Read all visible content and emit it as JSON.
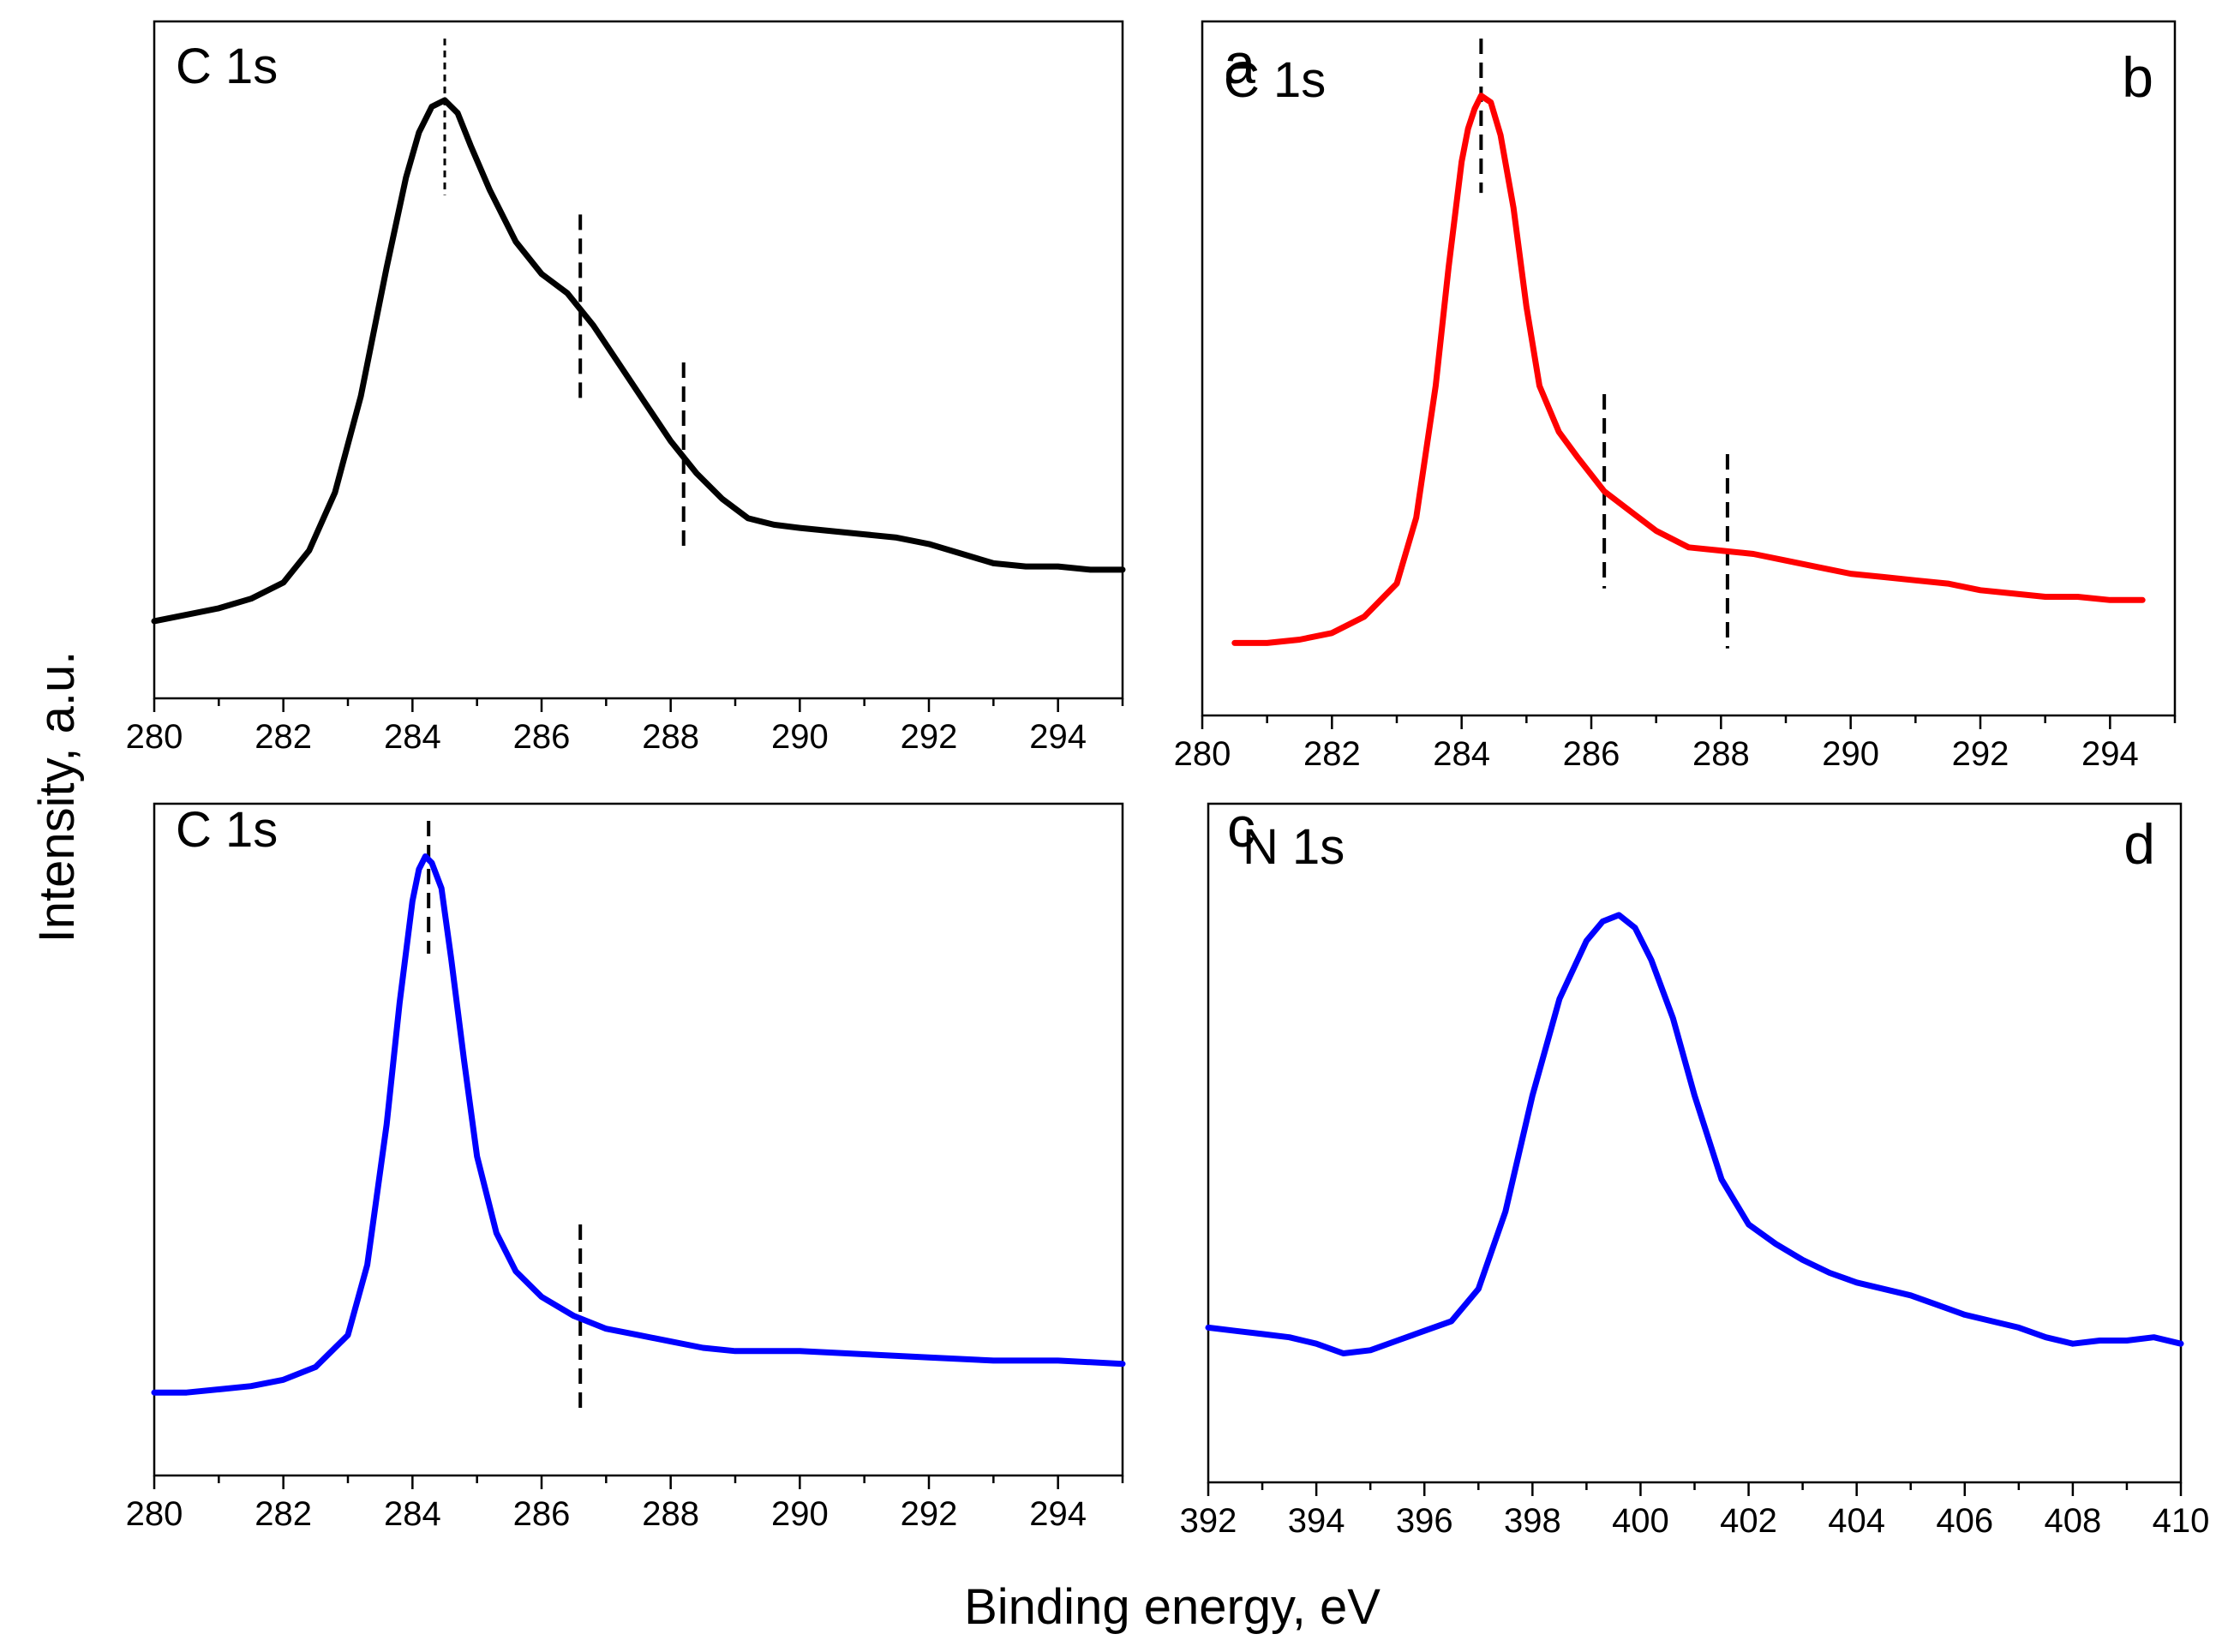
{
  "figure": {
    "xlabel": "Binding energy, eV",
    "ylabel": "Intensity, a.u."
  },
  "chart_data": [
    {
      "type": "line",
      "panel": "a",
      "label": "C 1s",
      "color": "#000000",
      "xlim": [
        280,
        295
      ],
      "ylim": [
        0,
        1
      ],
      "xticks": [
        280,
        282,
        284,
        286,
        288,
        290,
        292,
        294
      ],
      "xticks_minor_step": 1,
      "show_y_ticks": false,
      "marker_lines_x": [
        284.5,
        286.6,
        288.2
      ],
      "series": [
        {
          "x": [
            280,
            280.5,
            281,
            281.5,
            282,
            282.4,
            282.8,
            283.2,
            283.6,
            283.9,
            284.1,
            284.3,
            284.5,
            284.7,
            284.9,
            285.2,
            285.6,
            286.0,
            286.4,
            286.8,
            287.2,
            287.6,
            288.0,
            288.4,
            288.8,
            289.2,
            289.6,
            290.0,
            290.5,
            291.0,
            291.5,
            292.0,
            292.5,
            293.0,
            293.5,
            294.0,
            294.5,
            295.0
          ],
          "y": [
            0.12,
            0.13,
            0.14,
            0.155,
            0.18,
            0.23,
            0.32,
            0.47,
            0.67,
            0.81,
            0.88,
            0.92,
            0.93,
            0.91,
            0.86,
            0.79,
            0.71,
            0.66,
            0.63,
            0.58,
            0.52,
            0.46,
            0.4,
            0.35,
            0.31,
            0.28,
            0.27,
            0.265,
            0.26,
            0.255,
            0.25,
            0.24,
            0.225,
            0.21,
            0.205,
            0.205,
            0.2,
            0.2
          ]
        }
      ]
    },
    {
      "type": "line",
      "panel": "b",
      "label": "C 1s",
      "color": "#ff0000",
      "xlim": [
        280,
        295
      ],
      "ylim": [
        0,
        1
      ],
      "xticks": [
        280,
        282,
        284,
        286,
        288,
        290,
        292,
        294
      ],
      "xticks_minor_step": 1,
      "show_y_ticks": false,
      "marker_lines_x": [
        284.3,
        286.2,
        288.1
      ],
      "series": [
        {
          "x": [
            280.5,
            281,
            281.5,
            282,
            282.5,
            283.0,
            283.3,
            283.6,
            283.8,
            284.0,
            284.1,
            284.2,
            284.3,
            284.45,
            284.6,
            284.8,
            285.0,
            285.2,
            285.5,
            285.8,
            286.2,
            286.6,
            287.0,
            287.5,
            288.0,
            288.5,
            289.0,
            289.5,
            290.0,
            290.5,
            291.0,
            291.5,
            292.0,
            292.5,
            293.0,
            293.5,
            294.0,
            294.5
          ],
          "y": [
            0.11,
            0.11,
            0.115,
            0.125,
            0.15,
            0.2,
            0.3,
            0.5,
            0.68,
            0.84,
            0.89,
            0.92,
            0.94,
            0.93,
            0.88,
            0.77,
            0.62,
            0.5,
            0.43,
            0.39,
            0.34,
            0.31,
            0.28,
            0.255,
            0.25,
            0.245,
            0.235,
            0.225,
            0.215,
            0.21,
            0.205,
            0.2,
            0.19,
            0.185,
            0.18,
            0.18,
            0.175,
            0.175
          ]
        }
      ]
    },
    {
      "type": "line",
      "panel": "c",
      "label": "C 1s",
      "color": "#0000ff",
      "xlim": [
        280,
        295
      ],
      "ylim": [
        0,
        1
      ],
      "xticks": [
        280,
        282,
        284,
        286,
        288,
        290,
        292,
        294
      ],
      "xticks_minor_step": 1,
      "show_y_ticks": false,
      "marker_lines_x": [
        284.25,
        286.6
      ],
      "series": [
        {
          "x": [
            280,
            280.5,
            281,
            281.5,
            282,
            282.5,
            283.0,
            283.3,
            283.6,
            283.8,
            284.0,
            284.1,
            284.2,
            284.3,
            284.45,
            284.6,
            284.8,
            285.0,
            285.3,
            285.6,
            286.0,
            286.5,
            287.0,
            287.5,
            288.0,
            288.5,
            289.0,
            290.0,
            291.0,
            292.0,
            293.0,
            294.0,
            295.0
          ],
          "y": [
            0.13,
            0.13,
            0.135,
            0.14,
            0.15,
            0.17,
            0.22,
            0.33,
            0.55,
            0.74,
            0.9,
            0.95,
            0.97,
            0.96,
            0.92,
            0.81,
            0.65,
            0.5,
            0.38,
            0.32,
            0.28,
            0.25,
            0.23,
            0.22,
            0.21,
            0.2,
            0.195,
            0.195,
            0.19,
            0.185,
            0.18,
            0.18,
            0.175
          ]
        }
      ]
    },
    {
      "type": "line",
      "panel": "d",
      "label": "N 1s",
      "color": "#0000ff",
      "xlim": [
        392,
        410
      ],
      "ylim": [
        0,
        1
      ],
      "xticks": [
        392,
        394,
        396,
        398,
        400,
        402,
        404,
        406,
        408,
        410
      ],
      "xticks_minor_step": 1,
      "show_y_ticks": false,
      "marker_lines_x": [],
      "series": [
        {
          "x": [
            392,
            392.5,
            393,
            393.5,
            394,
            394.5,
            395,
            395.5,
            396,
            396.5,
            397,
            397.5,
            398,
            398.5,
            399,
            399.3,
            399.6,
            399.9,
            400.2,
            400.6,
            401.0,
            401.5,
            402.0,
            402.5,
            403.0,
            403.5,
            404.0,
            404.5,
            405.0,
            405.5,
            406.0,
            406.5,
            407.0,
            407.5,
            408.0,
            408.5,
            409.0,
            409.5,
            410.0
          ],
          "y": [
            0.24,
            0.235,
            0.23,
            0.225,
            0.215,
            0.2,
            0.205,
            0.22,
            0.235,
            0.25,
            0.3,
            0.42,
            0.6,
            0.75,
            0.84,
            0.87,
            0.88,
            0.86,
            0.81,
            0.72,
            0.6,
            0.47,
            0.4,
            0.37,
            0.345,
            0.325,
            0.31,
            0.3,
            0.29,
            0.275,
            0.26,
            0.25,
            0.24,
            0.225,
            0.215,
            0.22,
            0.22,
            0.225,
            0.215
          ]
        }
      ]
    }
  ]
}
